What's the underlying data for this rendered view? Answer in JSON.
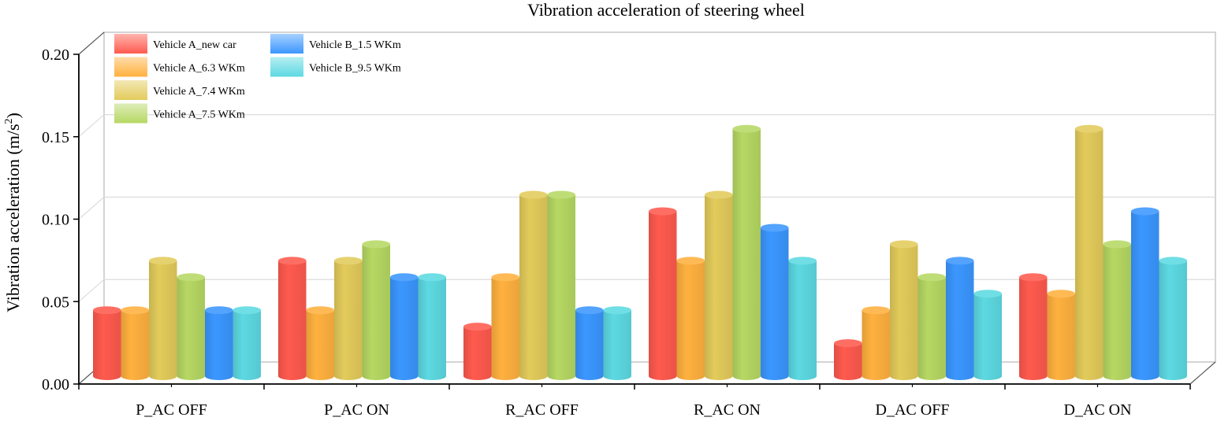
{
  "chart_data": {
    "type": "bar",
    "title": "Vibration acceleration of steering wheel",
    "ylabel": "Vibration acceleration (m/s",
    "ylabel_sup": "2",
    "ylabel_end": ")",
    "xlabel": "",
    "ylim": [
      0,
      0.2
    ],
    "yticks": [
      "0.00",
      "0.05",
      "0.10",
      "0.15",
      "0.20"
    ],
    "categories": [
      "P_AC OFF",
      "P_AC ON",
      "R_AC OFF",
      "R_AC ON",
      "D_AC OFF",
      "D_AC ON"
    ],
    "legend_position": "top-left",
    "grid": true,
    "series": [
      {
        "name": "Vehicle A_new car",
        "color": "#ff5a4e",
        "values": [
          0.04,
          0.07,
          0.03,
          0.1,
          0.02,
          0.06
        ]
      },
      {
        "name": "Vehicle A_6.3 WKm",
        "color": "#ffb13f",
        "values": [
          0.04,
          0.04,
          0.06,
          0.07,
          0.04,
          0.05
        ]
      },
      {
        "name": "Vehicle A_7.4 WKm",
        "color": "#e3cb5b",
        "values": [
          0.07,
          0.07,
          0.11,
          0.11,
          0.08,
          0.15
        ]
      },
      {
        "name": "Vehicle A_7.5 WKm",
        "color": "#b6d863",
        "values": [
          0.06,
          0.08,
          0.11,
          0.15,
          0.06,
          0.08
        ]
      },
      {
        "name": "Vehicle B_1.5 WKm",
        "color": "#3b97ff",
        "values": [
          0.04,
          0.06,
          0.04,
          0.09,
          0.07,
          0.1
        ]
      },
      {
        "name": "Vehicle B_9.5 WKm",
        "color": "#5dd9e2",
        "values": [
          0.04,
          0.06,
          0.04,
          0.07,
          0.05,
          0.07
        ]
      }
    ]
  }
}
